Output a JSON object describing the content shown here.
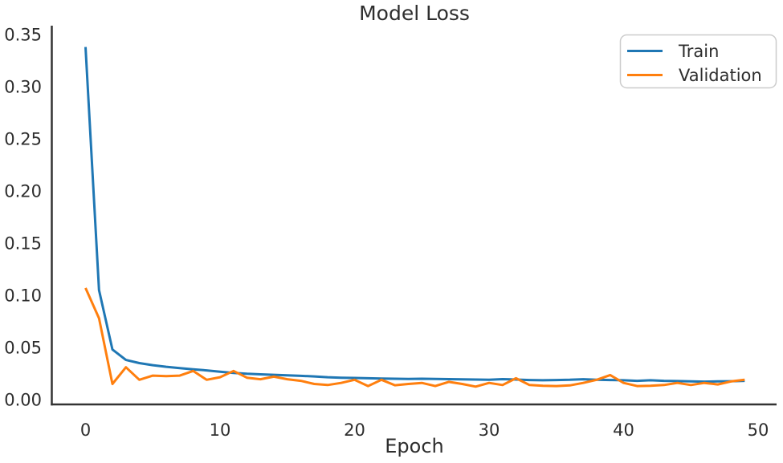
{
  "figure": {
    "background": "#ffffff",
    "text_color": "#2e2e2e",
    "spine_color": "#333333",
    "legend_border_color": "#cccccc"
  },
  "chart_data": {
    "type": "line",
    "title": "Model Loss",
    "xlabel": "Epoch",
    "ylabel": "",
    "grid": false,
    "xlim": [
      -2.5,
      51.5
    ],
    "ylim": [
      -0.005,
      0.3575
    ],
    "xticks": [
      "0",
      "10",
      "20",
      "30",
      "40",
      "50"
    ],
    "yticks": [
      "0.00",
      "0.05",
      "0.10",
      "0.15",
      "0.20",
      "0.25",
      "0.30",
      "0.35"
    ],
    "legend": {
      "position": "upper right"
    },
    "x": [
      0,
      1,
      2,
      3,
      4,
      5,
      6,
      7,
      8,
      9,
      10,
      11,
      12,
      13,
      14,
      15,
      16,
      17,
      18,
      19,
      20,
      21,
      22,
      23,
      24,
      25,
      26,
      27,
      28,
      29,
      30,
      31,
      32,
      33,
      34,
      35,
      36,
      37,
      38,
      39,
      40,
      41,
      42,
      43,
      44,
      45,
      46,
      47,
      48,
      49
    ],
    "series": [
      {
        "name": "Train",
        "color": "#1f77b4",
        "values": [
          0.338,
          0.105,
          0.048,
          0.038,
          0.035,
          0.033,
          0.0315,
          0.0302,
          0.029,
          0.028,
          0.0268,
          0.0256,
          0.0248,
          0.0242,
          0.0238,
          0.0232,
          0.0228,
          0.0222,
          0.0215,
          0.021,
          0.0208,
          0.0205,
          0.0202,
          0.02,
          0.0198,
          0.02,
          0.0198,
          0.0196,
          0.0194,
          0.0192,
          0.019,
          0.0196,
          0.0192,
          0.0188,
          0.0185,
          0.0188,
          0.019,
          0.0195,
          0.019,
          0.0188,
          0.0185,
          0.018,
          0.0185,
          0.018,
          0.0178,
          0.0175,
          0.0172,
          0.0175,
          0.0176,
          0.018
        ]
      },
      {
        "name": "Validation",
        "color": "#ff7f0e",
        "values": [
          0.107,
          0.078,
          0.015,
          0.031,
          0.019,
          0.023,
          0.0225,
          0.023,
          0.0275,
          0.019,
          0.0215,
          0.0275,
          0.021,
          0.0195,
          0.022,
          0.0195,
          0.018,
          0.015,
          0.014,
          0.016,
          0.019,
          0.013,
          0.019,
          0.0138,
          0.015,
          0.016,
          0.013,
          0.017,
          0.015,
          0.0125,
          0.016,
          0.014,
          0.0205,
          0.014,
          0.0133,
          0.013,
          0.0136,
          0.016,
          0.019,
          0.0235,
          0.016,
          0.013,
          0.0133,
          0.014,
          0.016,
          0.014,
          0.016,
          0.0145,
          0.0175,
          0.019
        ]
      }
    ]
  }
}
